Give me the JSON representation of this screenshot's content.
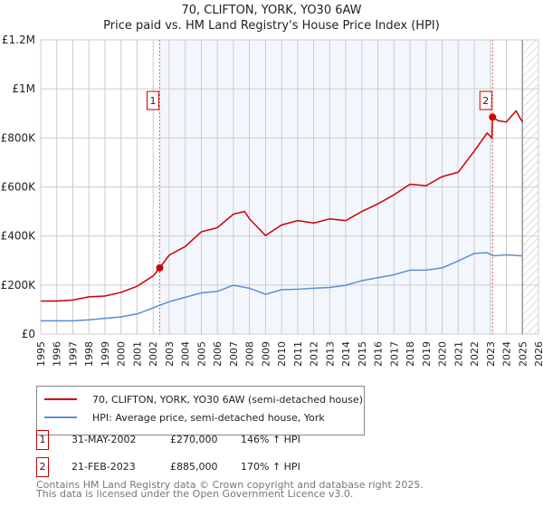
{
  "chart_data": {
    "type": "line",
    "title": "70, CLIFTON, YORK, YO30 6AW",
    "subtitle": "Price paid vs. HM Land Registry's House Price Index (HPI)",
    "xlim": [
      1995,
      2026
    ],
    "ylim": [
      0,
      1200000
    ],
    "x_ticks": [
      "1995",
      "1996",
      "1997",
      "1998",
      "1999",
      "2000",
      "2001",
      "2002",
      "2003",
      "2004",
      "2005",
      "2006",
      "2007",
      "2008",
      "2009",
      "2010",
      "2011",
      "2012",
      "2013",
      "2014",
      "2015",
      "2016",
      "2017",
      "2018",
      "2019",
      "2020",
      "2021",
      "2022",
      "2023",
      "2024",
      "2025",
      "2026"
    ],
    "y_ticks": [
      {
        "v": 0,
        "label": "£0"
      },
      {
        "v": 200000,
        "label": "£200K"
      },
      {
        "v": 400000,
        "label": "£400K"
      },
      {
        "v": 600000,
        "label": "£600K"
      },
      {
        "v": 800000,
        "label": "£800K"
      },
      {
        "v": 1000000,
        "label": "£1M"
      },
      {
        "v": 1200000,
        "label": "£1.2M"
      }
    ],
    "grid": true,
    "shaded_range": [
      2002.41,
      2023.14
    ],
    "hatched_from": 2025.0,
    "series": [
      {
        "name": "70, CLIFTON, YORK, YO30 6AW (semi-detached house)",
        "color": "#cc0000",
        "x": [
          1995,
          1996,
          1997,
          1998,
          1999,
          2000,
          2001,
          2002,
          2002.41,
          2003,
          2004,
          2005,
          2006,
          2007,
          2007.7,
          2008,
          2009,
          2010,
          2011,
          2012,
          2013,
          2014,
          2015,
          2016,
          2017,
          2018,
          2019,
          2020,
          2021,
          2022,
          2022.8,
          2023.1,
          2023.14,
          2023.5,
          2024,
          2024.6,
          2025
        ],
        "y": [
          135000,
          135000,
          139000,
          152000,
          155000,
          170000,
          195000,
          237000,
          270000,
          322000,
          357000,
          417000,
          434000,
          489000,
          500000,
          470000,
          402000,
          445000,
          463000,
          453000,
          470000,
          463000,
          500000,
          531000,
          568000,
          611000,
          605000,
          642000,
          660000,
          746000,
          820000,
          800000,
          885000,
          870000,
          865000,
          910000,
          865000
        ]
      },
      {
        "name": "HPI: Average price, semi-detached house, York",
        "color": "#5b8fd4",
        "x": [
          1995,
          1997,
          1998,
          1999,
          2000,
          2001,
          2002,
          2003,
          2004,
          2005,
          2006,
          2007,
          2008,
          2009,
          2010,
          2011,
          2012,
          2013,
          2014,
          2015,
          2016,
          2017,
          2018,
          2019,
          2020,
          2021,
          2022,
          2022.8,
          2023.2,
          2024,
          2025
        ],
        "y": [
          54000,
          54000,
          58000,
          64000,
          70000,
          82000,
          107000,
          132000,
          150000,
          168000,
          174000,
          199000,
          187000,
          162000,
          181000,
          183000,
          187000,
          190000,
          199000,
          218000,
          230000,
          242000,
          261000,
          261000,
          270000,
          298000,
          329000,
          332000,
          319000,
          323000,
          319000
        ]
      }
    ],
    "annotations": [
      {
        "label": "1",
        "x": 2002.41,
        "y": 270000
      },
      {
        "label": "2",
        "x": 2023.14,
        "y": 885000
      }
    ]
  },
  "legend": {
    "items": [
      "70, CLIFTON, YORK, YO30 6AW (semi-detached house)",
      "HPI: Average price, semi-detached house, York"
    ]
  },
  "sales": [
    {
      "num": "1",
      "date": "31-MAY-2002",
      "price": "£270,000",
      "hpi": "146% ↑ HPI"
    },
    {
      "num": "2",
      "date": "21-FEB-2023",
      "price": "£885,000",
      "hpi": "170% ↑ HPI"
    }
  ],
  "footer": {
    "line1": "Contains HM Land Registry data © Crown copyright and database right 2025.",
    "line2": "This data is licensed under the Open Government Licence v3.0."
  }
}
